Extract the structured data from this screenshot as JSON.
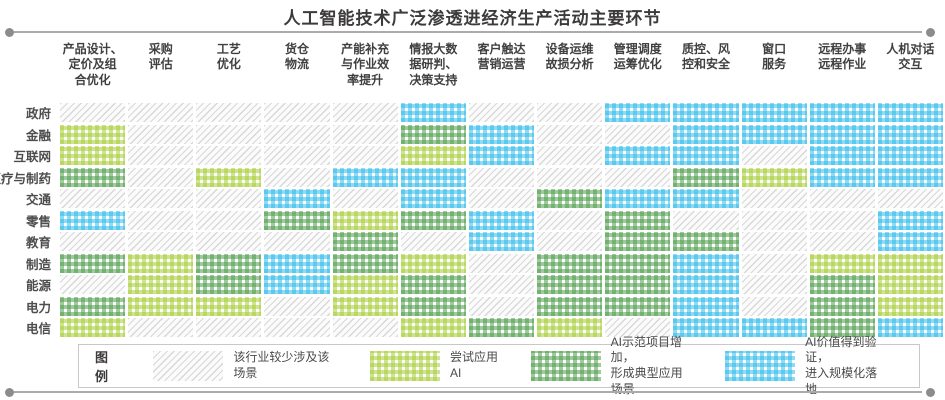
{
  "title": "人工智能技术广泛渗透进经济生产活动主要环节",
  "columns_display": [
    "产品设计、\n定价及组\n合优化",
    "采购\n评估",
    "工艺\n优化",
    "货仓\n物流",
    "产能补充\n与作业效\n率提升",
    "情报大数\n据研判、\n决策支持",
    "客户触达\n营销运营",
    "设备运维\n故损分析",
    "管理调度\n运筹优化",
    "质控、风\n控和安全",
    "窗口\n服务",
    "远程办事\n远程作业",
    "人机对话\n交互"
  ],
  "legend": {
    "label": "图例",
    "items": [
      {
        "key": "none",
        "label": "该行业较少涉及该场景"
      },
      {
        "key": "try",
        "label": "尝试应用AI"
      },
      {
        "key": "demo",
        "label": "AI示范项目增加，\n形成典型应用场景"
      },
      {
        "key": "scale",
        "label": "AI价值得到验证，\n进入规模化落地"
      }
    ]
  },
  "colors": {
    "try_lime": "#a8ce38",
    "demo_green": "#4f9e4c",
    "scale_blue": "#33bbea",
    "none_hatch": "#d8d8d8",
    "title_text": "#3d3a3a"
  },
  "chart_data": {
    "type": "heatmap",
    "title": "人工智能技术广泛渗透进经济生产活动主要环节",
    "x_categories": [
      "产品设计、定价及组合优化",
      "采购评估",
      "工艺优化",
      "货仓物流",
      "产能补充与作业效率提升",
      "情报大数据研判、决策支持",
      "客户触达营销运营",
      "设备运维故损分析",
      "管理调度运筹优化",
      "质控、风控和安全",
      "窗口服务",
      "远程办事远程作业",
      "人机对话交互"
    ],
    "y_categories": [
      "政府",
      "金融",
      "互联网",
      "医疗与制药",
      "交通",
      "零售",
      "教育",
      "制造",
      "能源",
      "电力",
      "电信"
    ],
    "levels": {
      "none": "该行业较少涉及该场景",
      "try": "尝试应用AI",
      "demo": "AI示范项目增加，形成典型应用场景",
      "scale": "AI价值得到验证，进入规模化落地"
    },
    "matrix": [
      [
        "none",
        "none",
        "none",
        "none",
        "none",
        "scale",
        "none",
        "none",
        "scale",
        "scale",
        "scale",
        "scale",
        "scale"
      ],
      [
        "try",
        "none",
        "none",
        "none",
        "none",
        "demo",
        "scale",
        "none",
        "none",
        "scale",
        "scale",
        "scale",
        "scale"
      ],
      [
        "try",
        "none",
        "none",
        "none",
        "none",
        "try",
        "scale",
        "none",
        "scale",
        "scale",
        "none",
        "scale",
        "scale"
      ],
      [
        "demo",
        "none",
        "try",
        "none",
        "scale",
        "scale",
        "none",
        "none",
        "none",
        "demo",
        "try",
        "scale",
        "scale"
      ],
      [
        "none",
        "none",
        "none",
        "scale",
        "none",
        "scale",
        "none",
        "demo",
        "scale",
        "scale",
        "none",
        "none",
        "none"
      ],
      [
        "scale",
        "none",
        "none",
        "demo",
        "try",
        "demo",
        "scale",
        "none",
        "demo",
        "none",
        "none",
        "none",
        "scale"
      ],
      [
        "none",
        "none",
        "none",
        "none",
        "demo",
        "none",
        "scale",
        "none",
        "demo",
        "demo",
        "none",
        "none",
        "scale"
      ],
      [
        "demo",
        "try",
        "demo",
        "scale",
        "demo",
        "try",
        "none",
        "demo",
        "demo",
        "scale",
        "none",
        "try",
        "try"
      ],
      [
        "none",
        "try",
        "demo",
        "scale",
        "try",
        "demo",
        "none",
        "demo",
        "demo",
        "scale",
        "none",
        "demo",
        "try"
      ],
      [
        "demo",
        "try",
        "try",
        "none",
        "try",
        "demo",
        "none",
        "demo",
        "demo",
        "scale",
        "none",
        "demo",
        "try"
      ],
      [
        "try",
        "none",
        "none",
        "none",
        "none",
        "try",
        "demo",
        "try",
        "none",
        "scale",
        "scale",
        "demo",
        "scale"
      ]
    ]
  }
}
